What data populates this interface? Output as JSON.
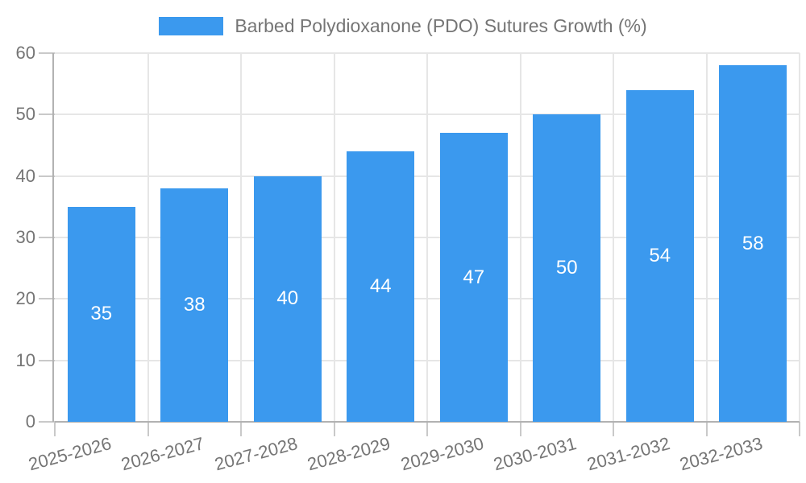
{
  "chart_data": {
    "type": "bar",
    "title": "Barbed Polydioxanone (PDO) Sutures Growth (%)",
    "categories": [
      "2025-2026",
      "2026-2027",
      "2027-2028",
      "2028-2029",
      "2029-2030",
      "2030-2031",
      "2031-2032",
      "2032-2033"
    ],
    "values": [
      35,
      38,
      40,
      44,
      47,
      50,
      54,
      58
    ],
    "xlabel": "",
    "ylabel": "",
    "ylim": [
      0,
      60
    ],
    "yticks": [
      0,
      10,
      20,
      30,
      40,
      50,
      60
    ],
    "grid": true,
    "legend_position": "top",
    "x_label_rotation_deg": -15,
    "bar_color": "#3B99EE",
    "value_label_color": "#ffffff",
    "axis_text_color": "#757575",
    "grid_color": "#e6e6e6",
    "axis_line_color": "#b2b2b2",
    "tick_color": "#c9c9c9"
  }
}
